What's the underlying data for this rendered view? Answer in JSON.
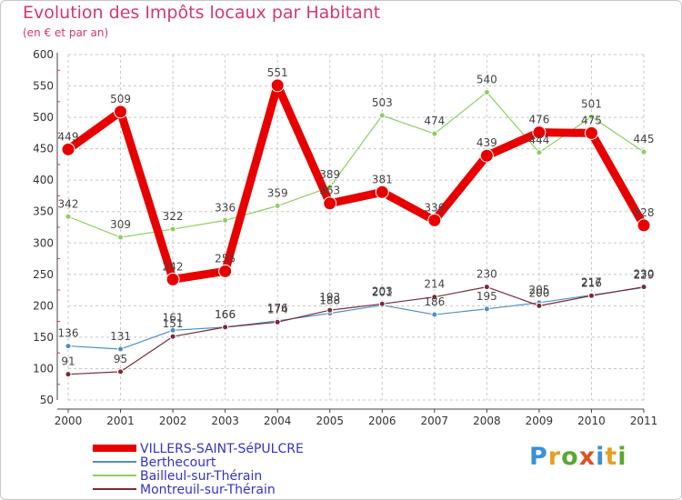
{
  "header": {
    "title": "Evolution des Impôts locaux par Habitant",
    "subtitle": "(en € et par an)"
  },
  "logo": {
    "letters": [
      "P",
      "r",
      "o",
      "x",
      "i",
      "t",
      "i"
    ],
    "colors": [
      "#3c8fd8",
      "#e8a020",
      "#5aa832",
      "#e05020",
      "#3c8fd8",
      "#e8a020",
      "#5aa832"
    ]
  },
  "chart_data": {
    "type": "line",
    "x": [
      "2000",
      "2001",
      "2002",
      "2003",
      "2004",
      "2005",
      "2006",
      "2007",
      "2008",
      "2009",
      "2010",
      "2011"
    ],
    "ylim": [
      50,
      600
    ],
    "yticks": [
      50,
      100,
      150,
      200,
      250,
      300,
      350,
      400,
      450,
      500,
      550,
      600
    ],
    "grid": true,
    "legend_position": "bottom-left",
    "series": [
      {
        "name": "Berthecourt",
        "color": "#4a90c8",
        "width": 1.2,
        "marker_r": 3,
        "values": [
          136,
          131,
          161,
          166,
          176,
          188,
          201,
          186,
          195,
          205,
          217,
          229
        ],
        "labels": [
          "136",
          "131",
          "161",
          "166",
          "176",
          "188",
          "201",
          "186",
          "195",
          "205",
          "217",
          "229"
        ]
      },
      {
        "name": "Bailleul-sur-Thérain",
        "color": "#8ad060",
        "width": 1.2,
        "marker_r": 3,
        "values": [
          342,
          309,
          322,
          336,
          359,
          389,
          503,
          474,
          540,
          444,
          501,
          445
        ],
        "labels": [
          "342",
          "309",
          "322",
          "336",
          "359",
          "389",
          "503",
          "474",
          "540",
          "444",
          "501",
          "445"
        ]
      },
      {
        "name": "Montreuil-sur-Thérain",
        "color": "#7a2a38",
        "width": 1.2,
        "marker_r": 3,
        "values": [
          91,
          95,
          151,
          166,
          174,
          193,
          203,
          214,
          230,
          200,
          216,
          230
        ],
        "labels": [
          "91",
          "95",
          "151",
          "166",
          "174",
          "193",
          "203",
          "214",
          "230",
          "200",
          "216",
          "230"
        ]
      },
      {
        "name": "VILLERS-SAINT-SéPULCRE",
        "color": "#e80000",
        "width": 9,
        "marker_r": 7,
        "values": [
          449,
          509,
          242,
          255,
          551,
          363,
          381,
          336,
          439,
          476,
          475,
          328
        ],
        "labels": [
          "449",
          "509",
          "242",
          "255",
          "551",
          "363",
          "381",
          "336",
          "439",
          "476",
          "475",
          "328"
        ]
      }
    ],
    "legend": [
      {
        "name": "VILLERS-SAINT-SéPULCRE",
        "color": "#e80000",
        "thick": true
      },
      {
        "name": "Berthecourt",
        "color": "#4a90c8",
        "thick": false
      },
      {
        "name": "Bailleul-sur-Thérain",
        "color": "#8ad060",
        "thick": false
      },
      {
        "name": "Montreuil-sur-Thérain",
        "color": "#7a2a38",
        "thick": false
      }
    ]
  }
}
